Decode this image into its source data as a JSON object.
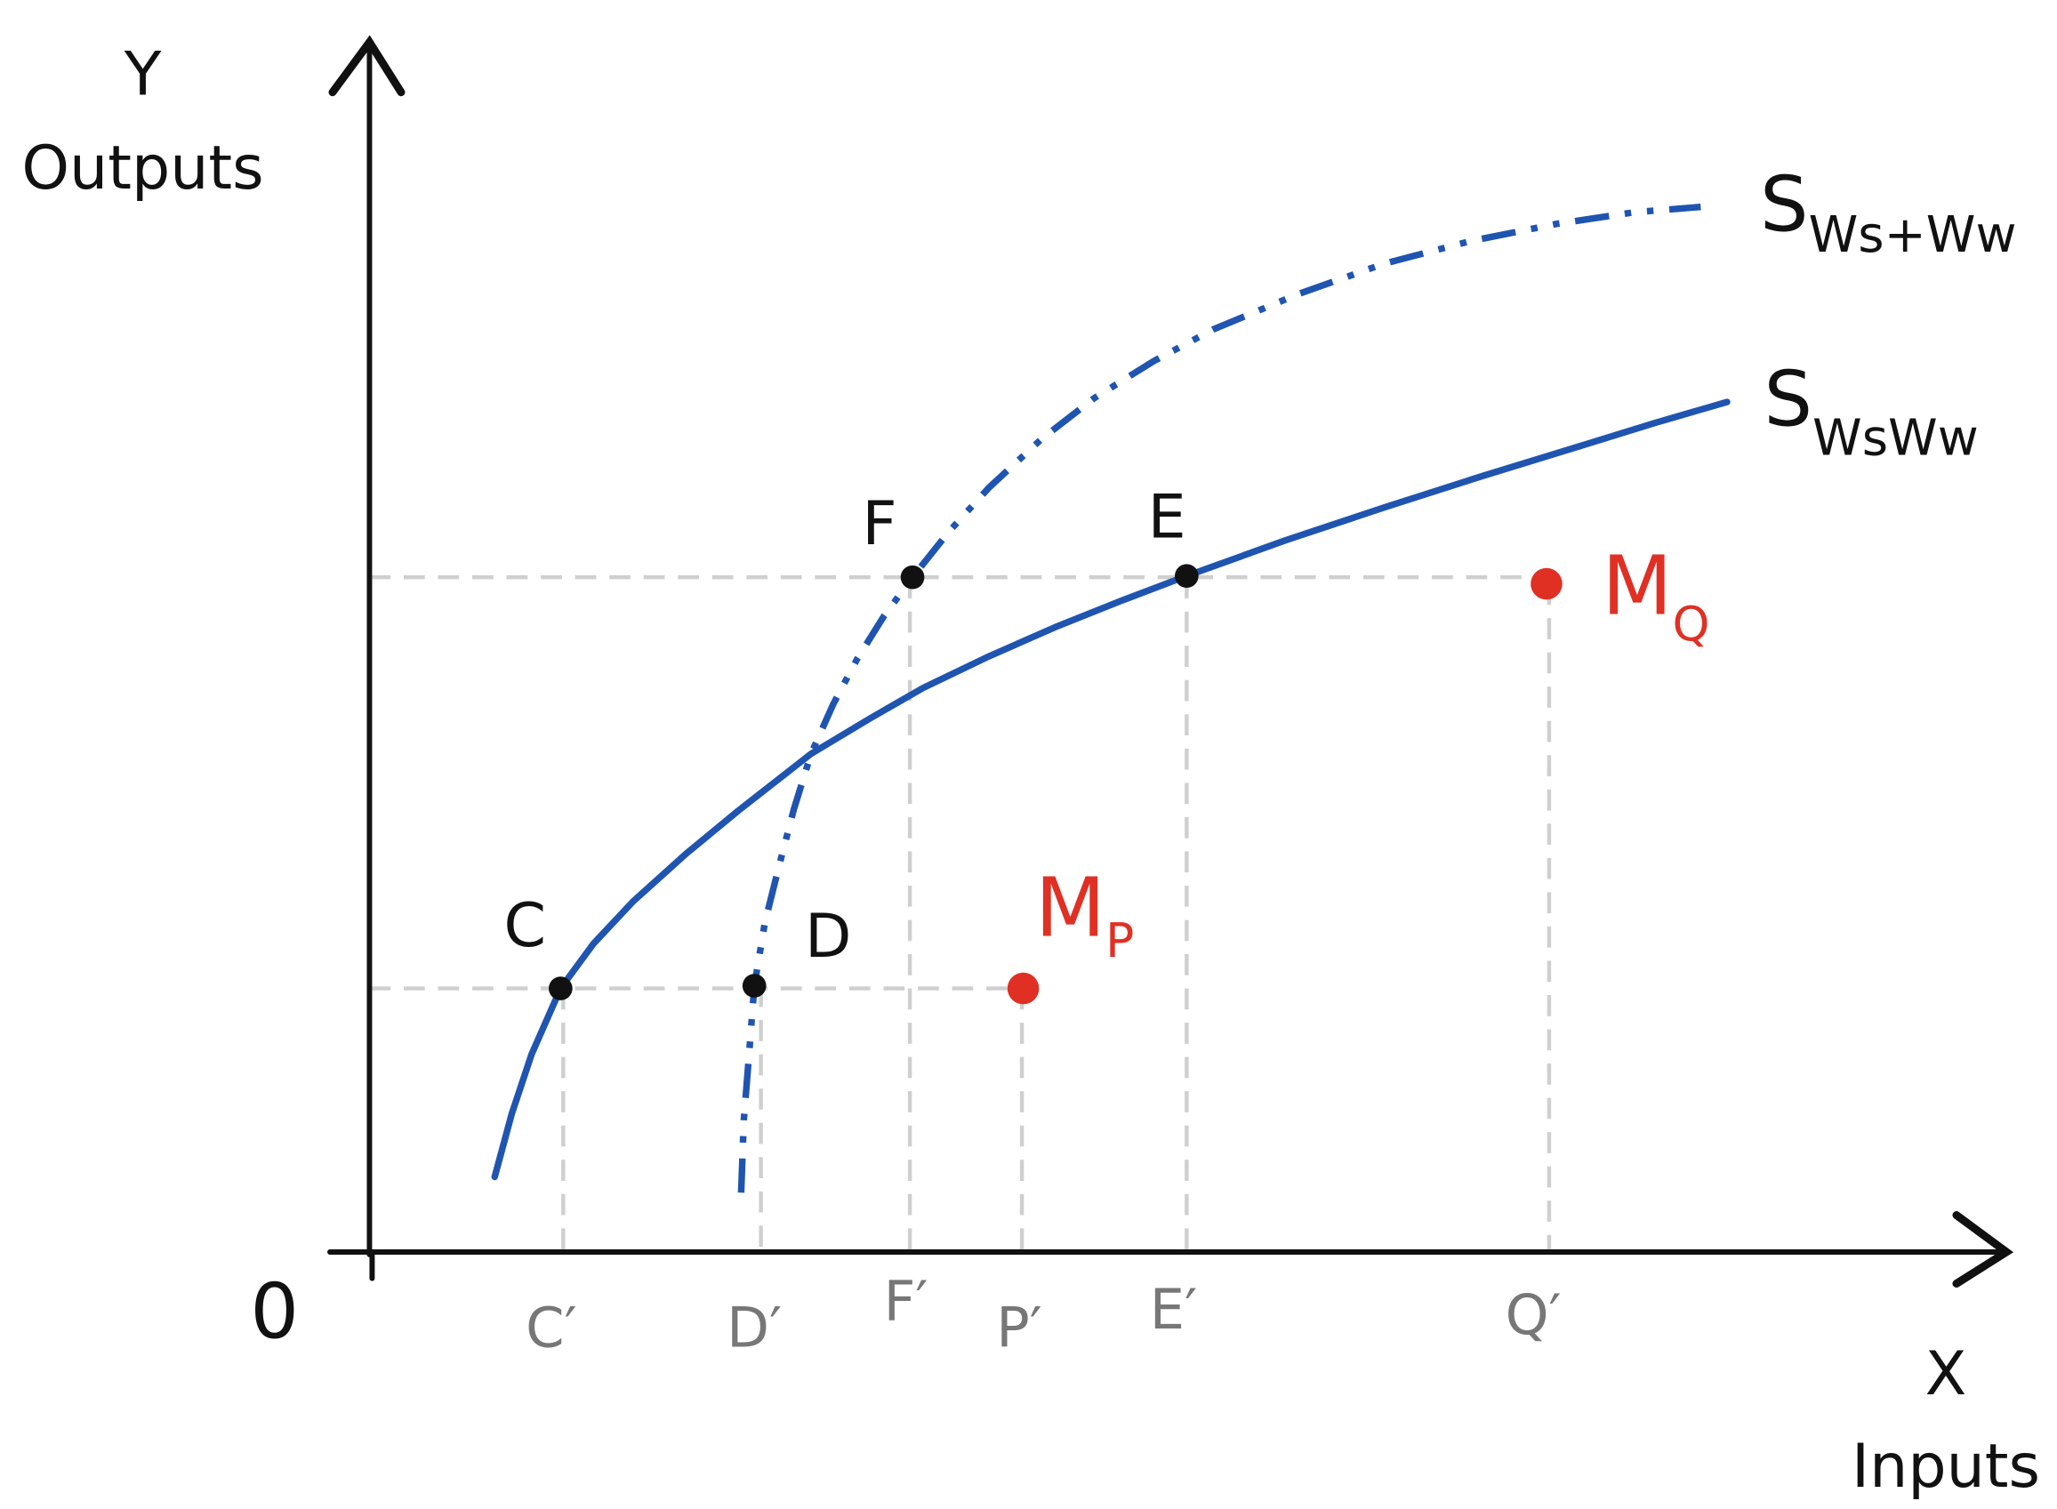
{
  "axes": {
    "y": {
      "symbol": "Y",
      "label": "Outputs"
    },
    "x": {
      "symbol": "X",
      "label": "Inputs"
    },
    "origin": "0"
  },
  "curves": [
    {
      "symbol": "S",
      "subscript": "Ws+Ww"
    },
    {
      "symbol": "S",
      "subscript": "WsWw"
    }
  ],
  "points": [
    "C",
    "D",
    "F",
    "E"
  ],
  "observed_points": [
    {
      "symbol": "M",
      "subscript": "P"
    },
    {
      "symbol": "M",
      "subscript": "Q"
    }
  ],
  "projections": [
    "C′",
    "D′",
    "F′",
    "P′",
    "E′",
    "Q′"
  ]
}
